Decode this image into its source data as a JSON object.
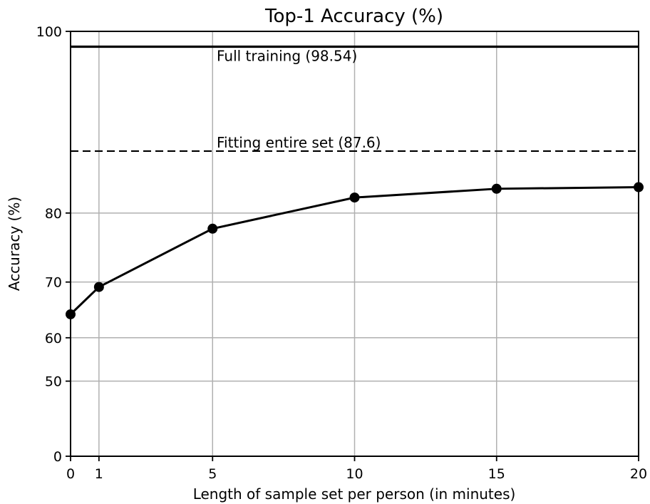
{
  "chart_data": {
    "type": "line",
    "title": "Top-1 Accuracy (%)",
    "xlabel": "Length of sample set per person (in minutes)",
    "ylabel": "Accuracy (%)",
    "xlim": [
      0,
      20
    ],
    "ylim": [
      0,
      100
    ],
    "y_scale": "power (exponent ~2.5)",
    "grid": true,
    "x_ticks": [
      {
        "value": 0,
        "label": "0"
      },
      {
        "value": 1,
        "label": "1"
      },
      {
        "value": 5,
        "label": "5"
      },
      {
        "value": 10,
        "label": "10"
      },
      {
        "value": 15,
        "label": "15"
      },
      {
        "value": 20,
        "label": "20"
      }
    ],
    "y_ticks": [
      {
        "value": 0,
        "label": "0"
      },
      {
        "value": 50,
        "label": "50"
      },
      {
        "value": 60,
        "label": "60"
      },
      {
        "value": 70,
        "label": "70"
      },
      {
        "value": 80,
        "label": "80"
      },
      {
        "value": 100,
        "label": "100"
      }
    ],
    "series": [
      {
        "x": [
          0,
          1,
          5,
          10,
          15,
          20
        ],
        "y": [
          64.5,
          69.2,
          77.9,
          82.0,
          83.1,
          83.3
        ],
        "color": "#000000",
        "marker": "circle"
      }
    ],
    "reference_lines": [
      {
        "label": "Full training (98.54)",
        "value": 98.54,
        "style": "solid"
      },
      {
        "label": "Fitting entire set (87.6)",
        "value": 87.6,
        "style": "dashed"
      }
    ]
  }
}
